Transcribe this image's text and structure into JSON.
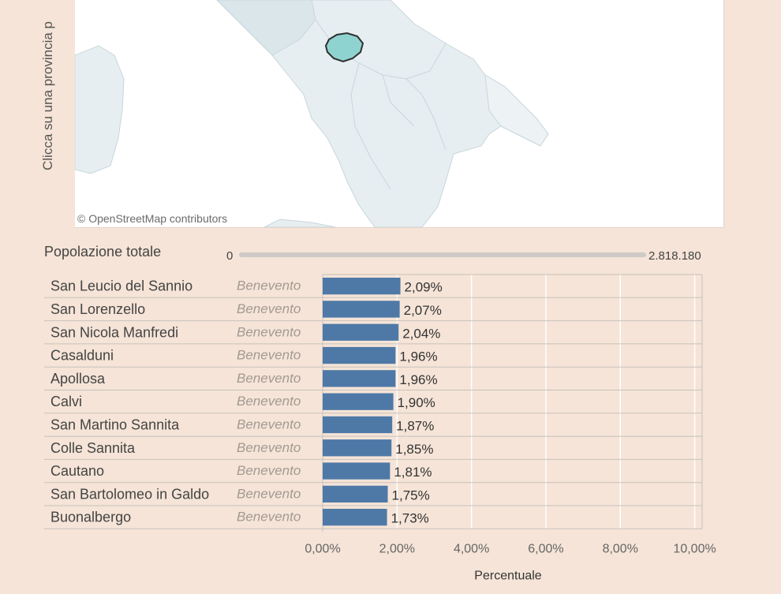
{
  "side_label": "Clicca su una provincia p",
  "map": {
    "attribution": "© OpenStreetMap contributors",
    "selected_color": "#8fd3d0",
    "region_color": "#e6eef1"
  },
  "population_filter": {
    "title": "Popolazione totale",
    "min_label": "0",
    "max_label": "2.818.180"
  },
  "chart_data": {
    "type": "bar",
    "orientation": "horizontal",
    "bar_color": "#4e79a7",
    "grid": true,
    "xlabel": "Percentuale",
    "xlim": [
      0,
      10.2
    ],
    "x_ticks": [
      0,
      2,
      4,
      6,
      8,
      10
    ],
    "x_tick_labels": [
      "0,00%",
      "2,00%",
      "4,00%",
      "6,00%",
      "8,00%",
      "10,00%"
    ],
    "rows": [
      {
        "comune": "San Leucio del Sannio",
        "provincia": "Benevento",
        "value": 2.09,
        "label": "2,09%"
      },
      {
        "comune": "San Lorenzello",
        "provincia": "Benevento",
        "value": 2.07,
        "label": "2,07%"
      },
      {
        "comune": "San Nicola Manfredi",
        "provincia": "Benevento",
        "value": 2.04,
        "label": "2,04%"
      },
      {
        "comune": "Casalduni",
        "provincia": "Benevento",
        "value": 1.96,
        "label": "1,96%"
      },
      {
        "comune": "Apollosa",
        "provincia": "Benevento",
        "value": 1.96,
        "label": "1,96%"
      },
      {
        "comune": "Calvi",
        "provincia": "Benevento",
        "value": 1.9,
        "label": "1,90%"
      },
      {
        "comune": "San Martino Sannita",
        "provincia": "Benevento",
        "value": 1.87,
        "label": "1,87%"
      },
      {
        "comune": "Colle Sannita",
        "provincia": "Benevento",
        "value": 1.85,
        "label": "1,85%"
      },
      {
        "comune": "Cautano",
        "provincia": "Benevento",
        "value": 1.81,
        "label": "1,81%"
      },
      {
        "comune": "San Bartolomeo in Galdo",
        "provincia": "Benevento",
        "value": 1.75,
        "label": "1,75%"
      },
      {
        "comune": "Buonalbergo",
        "provincia": "Benevento",
        "value": 1.73,
        "label": "1,73%"
      }
    ]
  }
}
